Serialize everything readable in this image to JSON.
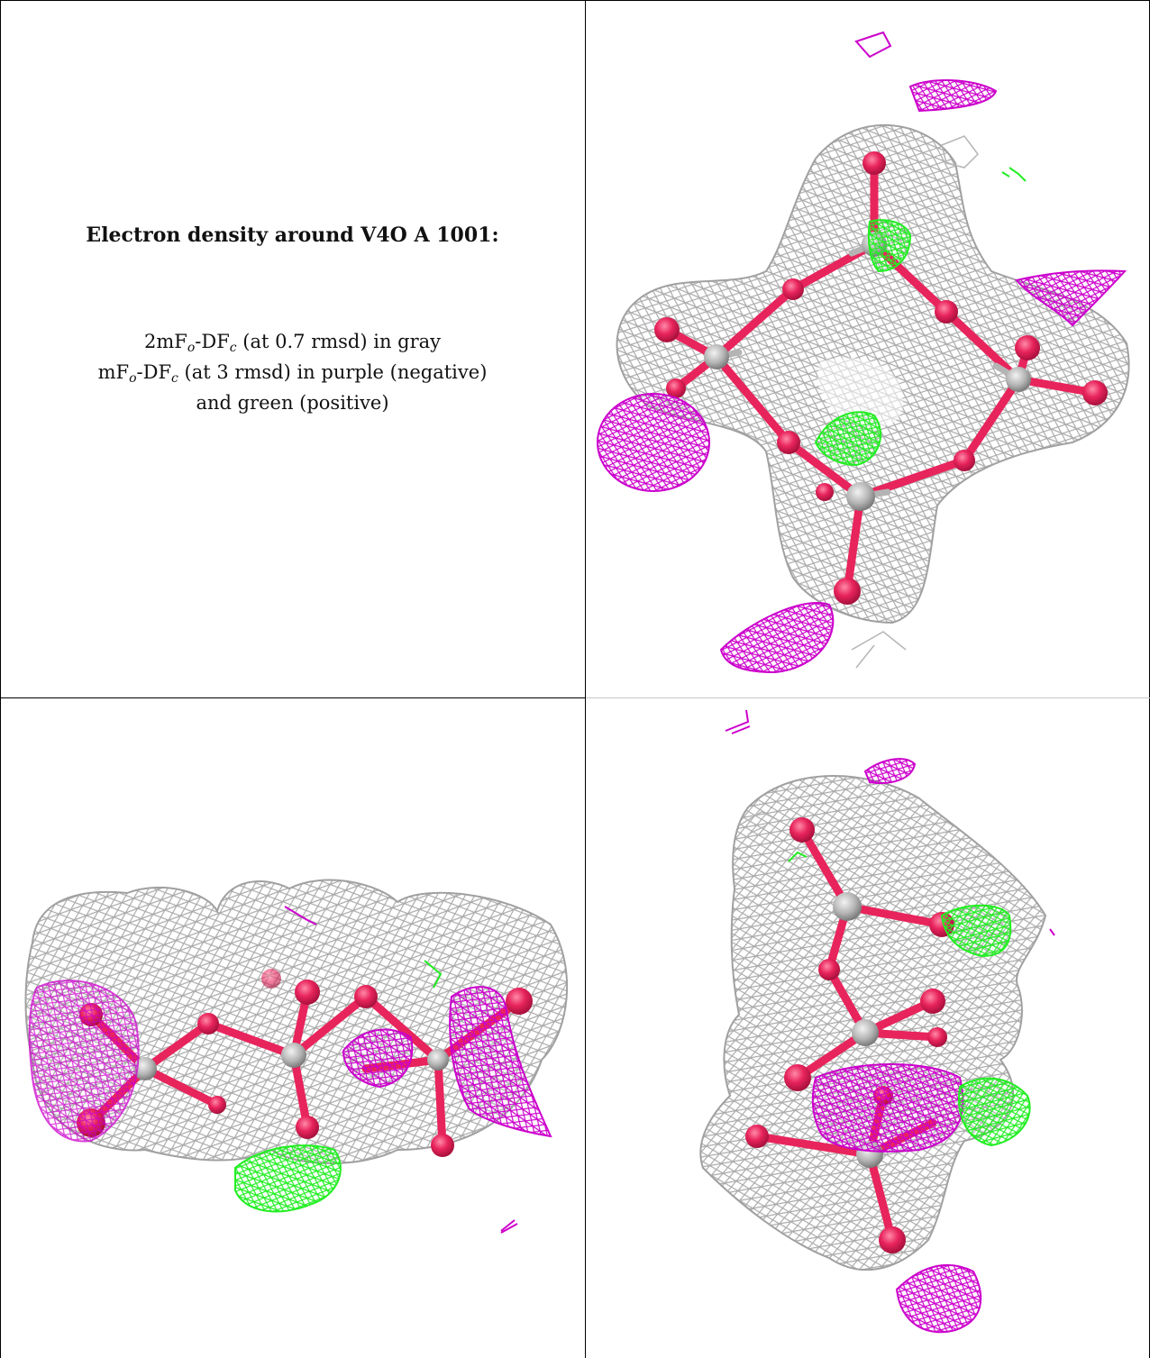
{
  "caption": {
    "title": "Electron density around V4O A 1001:",
    "line1": {
      "prefix": "2mF",
      "sub1": "o",
      "mid": "-DF",
      "sub2": "c",
      "suffix": " (at 0.7 rmsd) in gray"
    },
    "line2": {
      "prefix": "mF",
      "sub1": "o",
      "mid": "-DF",
      "sub2": "c",
      "suffix": " (at 3 rmsd) in purple (negative)"
    },
    "line3": "and green (positive)"
  },
  "colors": {
    "gray_mesh": "#a9a9a9",
    "negative_mesh": "#cc00cc",
    "positive_mesh": "#22ee22",
    "oxygen_atom": "#e8245c",
    "vanadium_atom": "#b4b4b4"
  },
  "panels": [
    {
      "view": "top",
      "label": ""
    },
    {
      "view": "side",
      "label": ""
    },
    {
      "view": "end",
      "label": ""
    }
  ]
}
